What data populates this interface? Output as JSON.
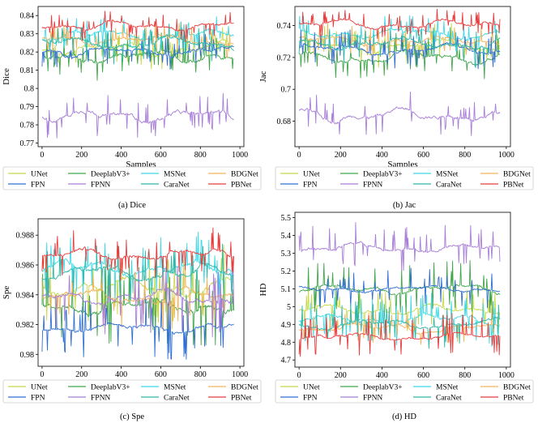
{
  "legend_labels": [
    "UNet",
    "DeeplabV3+",
    "MSNet",
    "BDGNet",
    "FPN",
    "FPNN",
    "CaraNet",
    "PBNet"
  ],
  "series_colors": {
    "UNet": "#c8d84a",
    "DeeplabV3+": "#3fa64a",
    "MSNet": "#3fd8e6",
    "BDGNet": "#f2b45c",
    "FPN": "#2f6fd2",
    "FPNN": "#a87ed8",
    "CaraNet": "#2fb7a8",
    "PBNet": "#e83c3c"
  },
  "chart_data": [
    {
      "type": "line",
      "id": "dice",
      "caption": "(a) Dice",
      "xlabel": "Samples",
      "ylabel": "Dice",
      "xlim": [
        -20,
        1020
      ],
      "ylim": [
        0.768,
        0.845
      ],
      "xticks": [
        0,
        200,
        400,
        600,
        800,
        1000
      ],
      "yticks": [
        0.77,
        0.78,
        0.79,
        0.8,
        0.81,
        0.82,
        0.83,
        0.84
      ],
      "n_samples": 970,
      "series": [
        {
          "name": "UNet",
          "mean": 0.8215,
          "amp": 0.0035,
          "spike": 0.009
        },
        {
          "name": "DeeplabV3+",
          "mean": 0.8175,
          "amp": 0.0035,
          "spike": 0.01
        },
        {
          "name": "MSNet",
          "mean": 0.8295,
          "amp": 0.003,
          "spike": 0.008
        },
        {
          "name": "BDGNet",
          "mean": 0.8265,
          "amp": 0.003,
          "spike": 0.008
        },
        {
          "name": "FPN",
          "mean": 0.8205,
          "amp": 0.003,
          "spike": 0.009
        },
        {
          "name": "FPNN",
          "mean": 0.785,
          "amp": 0.0035,
          "spike": 0.011
        },
        {
          "name": "CaraNet",
          "mean": 0.825,
          "amp": 0.0035,
          "spike": 0.01
        },
        {
          "name": "PBNet",
          "mean": 0.8345,
          "amp": 0.0025,
          "spike": 0.007
        }
      ]
    },
    {
      "type": "line",
      "id": "jac",
      "caption": "(b) Jac",
      "xlabel": "Samples",
      "ylabel": "Jac",
      "xlim": [
        -20,
        1020
      ],
      "ylim": [
        0.664,
        0.752
      ],
      "xticks": [
        0,
        200,
        400,
        600,
        800,
        1000
      ],
      "yticks": [
        0.68,
        0.7,
        0.72,
        0.74
      ],
      "n_samples": 970,
      "series": [
        {
          "name": "UNet",
          "mean": 0.7275,
          "amp": 0.004,
          "spike": 0.012
        },
        {
          "name": "DeeplabV3+",
          "mean": 0.72,
          "amp": 0.004,
          "spike": 0.012
        },
        {
          "name": "MSNet",
          "mean": 0.735,
          "amp": 0.0035,
          "spike": 0.01
        },
        {
          "name": "BDGNet",
          "mean": 0.7305,
          "amp": 0.0035,
          "spike": 0.01
        },
        {
          "name": "FPN",
          "mean": 0.725,
          "amp": 0.0035,
          "spike": 0.011
        },
        {
          "name": "FPNN",
          "mean": 0.684,
          "amp": 0.004,
          "spike": 0.013
        },
        {
          "name": "CaraNet",
          "mean": 0.729,
          "amp": 0.004,
          "spike": 0.012
        },
        {
          "name": "PBNet",
          "mean": 0.741,
          "amp": 0.003,
          "spike": 0.008
        }
      ]
    },
    {
      "type": "line",
      "id": "spe",
      "caption": "(c) Spe",
      "xlabel": "Samples",
      "ylabel": "Spe",
      "xlim": [
        -20,
        1020
      ],
      "ylim": [
        0.9792,
        0.9891
      ],
      "xticks": [
        0,
        200,
        400,
        600,
        800,
        1000
      ],
      "yticks": [
        0.98,
        0.982,
        0.984,
        0.986,
        0.988
      ],
      "n_samples": 970,
      "series": [
        {
          "name": "UNet",
          "mean": 0.9845,
          "amp": 0.0006,
          "spike": 0.0025
        },
        {
          "name": "DeeplabV3+",
          "mean": 0.9832,
          "amp": 0.0006,
          "spike": 0.0028
        },
        {
          "name": "MSNet",
          "mean": 0.9858,
          "amp": 0.0005,
          "spike": 0.002
        },
        {
          "name": "BDGNet",
          "mean": 0.9839,
          "amp": 0.0005,
          "spike": 0.002
        },
        {
          "name": "FPN",
          "mean": 0.9818,
          "amp": 0.0004,
          "spike": 0.002
        },
        {
          "name": "FPNN",
          "mean": 0.9838,
          "amp": 0.0005,
          "spike": 0.0025
        },
        {
          "name": "CaraNet",
          "mean": 0.9855,
          "amp": 0.0005,
          "spike": 0.002
        },
        {
          "name": "PBNet",
          "mean": 0.9867,
          "amp": 0.0004,
          "spike": 0.0015
        }
      ]
    },
    {
      "type": "line",
      "id": "hd",
      "caption": "(d) HD",
      "xlabel": "Samples",
      "ylabel": "HD",
      "xlim": [
        -20,
        1020
      ],
      "ylim": [
        4.66,
        5.53
      ],
      "xticks": [
        0,
        200,
        400,
        600,
        800,
        1000
      ],
      "yticks": [
        4.7,
        4.8,
        4.9,
        5.0,
        5.1,
        5.2,
        5.3,
        5.4,
        5.5
      ],
      "n_samples": 970,
      "series": [
        {
          "name": "UNet",
          "mean": 4.98,
          "amp": 0.03,
          "spike": 0.12
        },
        {
          "name": "DeeplabV3+",
          "mean": 5.1,
          "amp": 0.03,
          "spike": 0.15
        },
        {
          "name": "MSNet",
          "mean": 4.93,
          "amp": 0.03,
          "spike": 0.13
        },
        {
          "name": "BDGNet",
          "mean": 4.88,
          "amp": 0.025,
          "spike": 0.1
        },
        {
          "name": "FPN",
          "mean": 5.1,
          "amp": 0.02,
          "spike": 0.12
        },
        {
          "name": "FPNN",
          "mean": 5.33,
          "amp": 0.03,
          "spike": 0.13
        },
        {
          "name": "CaraNet",
          "mean": 4.9,
          "amp": 0.03,
          "spike": 0.12
        },
        {
          "name": "PBNet",
          "mean": 4.83,
          "amp": 0.02,
          "spike": 0.12
        }
      ]
    }
  ]
}
